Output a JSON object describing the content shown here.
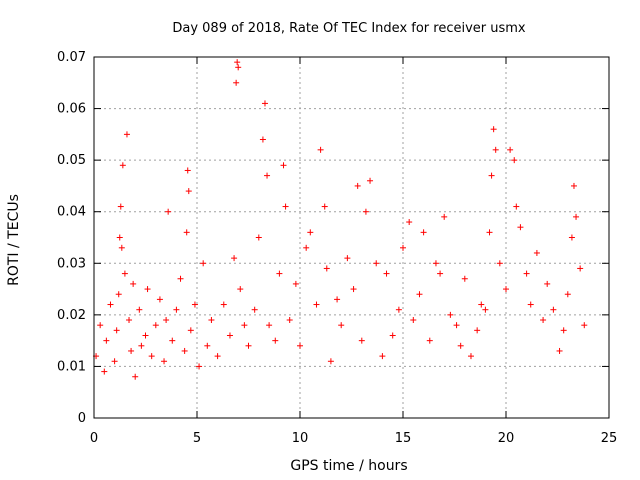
{
  "chart_data": {
    "type": "scatter",
    "title": "Day 089 of 2018, Rate Of TEC Index for receiver usmx",
    "xlabel": "GPS time / hours",
    "ylabel": "ROTI / TECUs",
    "xlim": [
      0,
      25
    ],
    "ylim": [
      0,
      0.07
    ],
    "x_ticks": [
      "0",
      "5",
      "10",
      "15",
      "20",
      "25"
    ],
    "y_ticks": [
      "0",
      "0.01",
      "0.02",
      "0.03",
      "0.04",
      "0.05",
      "0.06",
      "0.07"
    ],
    "grid": true,
    "marker": "plus",
    "color": "#ff0000",
    "series": [
      {
        "name": "ROTI",
        "x": [
          0.1,
          0.3,
          0.5,
          0.6,
          0.8,
          1.0,
          1.1,
          1.2,
          1.25,
          1.3,
          1.35,
          1.4,
          1.5,
          1.6,
          1.7,
          1.8,
          1.9,
          2.0,
          2.2,
          2.3,
          2.5,
          2.6,
          2.8,
          3.0,
          3.2,
          3.4,
          3.5,
          3.6,
          3.8,
          4.0,
          4.2,
          4.4,
          4.5,
          4.55,
          4.6,
          4.7,
          4.9,
          5.1,
          5.3,
          5.5,
          5.7,
          6.0,
          6.3,
          6.6,
          6.8,
          6.9,
          6.95,
          7.0,
          7.1,
          7.3,
          7.5,
          7.8,
          8.0,
          8.2,
          8.3,
          8.4,
          8.5,
          8.8,
          9.0,
          9.2,
          9.3,
          9.5,
          9.8,
          10.0,
          10.3,
          10.5,
          10.8,
          11.0,
          11.2,
          11.3,
          11.5,
          11.8,
          12.0,
          12.3,
          12.6,
          12.8,
          13.0,
          13.2,
          13.4,
          13.7,
          14.0,
          14.2,
          14.5,
          14.8,
          15.0,
          15.3,
          15.5,
          15.8,
          16.0,
          16.3,
          16.6,
          16.8,
          17.0,
          17.3,
          17.6,
          17.8,
          18.0,
          18.3,
          18.6,
          18.8,
          19.0,
          19.2,
          19.3,
          19.4,
          19.5,
          19.7,
          20.0,
          20.2,
          20.4,
          20.5,
          20.7,
          21.0,
          21.2,
          21.5,
          21.8,
          22.0,
          22.3,
          22.6,
          22.8,
          23.0,
          23.2,
          23.3,
          23.4,
          23.6,
          23.8
        ],
        "y": [
          0.012,
          0.018,
          0.009,
          0.015,
          0.022,
          0.011,
          0.017,
          0.024,
          0.035,
          0.041,
          0.033,
          0.049,
          0.028,
          0.055,
          0.019,
          0.013,
          0.026,
          0.008,
          0.021,
          0.014,
          0.016,
          0.025,
          0.012,
          0.018,
          0.023,
          0.011,
          0.019,
          0.04,
          0.015,
          0.021,
          0.027,
          0.013,
          0.036,
          0.048,
          0.044,
          0.017,
          0.022,
          0.01,
          0.03,
          0.014,
          0.019,
          0.012,
          0.022,
          0.016,
          0.031,
          0.065,
          0.069,
          0.068,
          0.025,
          0.018,
          0.014,
          0.021,
          0.035,
          0.054,
          0.061,
          0.047,
          0.018,
          0.015,
          0.028,
          0.049,
          0.041,
          0.019,
          0.026,
          0.014,
          0.033,
          0.036,
          0.022,
          0.052,
          0.041,
          0.029,
          0.011,
          0.023,
          0.018,
          0.031,
          0.025,
          0.045,
          0.015,
          0.04,
          0.046,
          0.03,
          0.012,
          0.028,
          0.016,
          0.021,
          0.033,
          0.038,
          0.019,
          0.024,
          0.036,
          0.015,
          0.03,
          0.028,
          0.039,
          0.02,
          0.018,
          0.014,
          0.027,
          0.012,
          0.017,
          0.022,
          0.021,
          0.036,
          0.047,
          0.056,
          0.052,
          0.03,
          0.025,
          0.052,
          0.05,
          0.041,
          0.037,
          0.028,
          0.022,
          0.032,
          0.019,
          0.026,
          0.021,
          0.013,
          0.017,
          0.024,
          0.035,
          0.045,
          0.039,
          0.029,
          0.018
        ]
      }
    ]
  }
}
